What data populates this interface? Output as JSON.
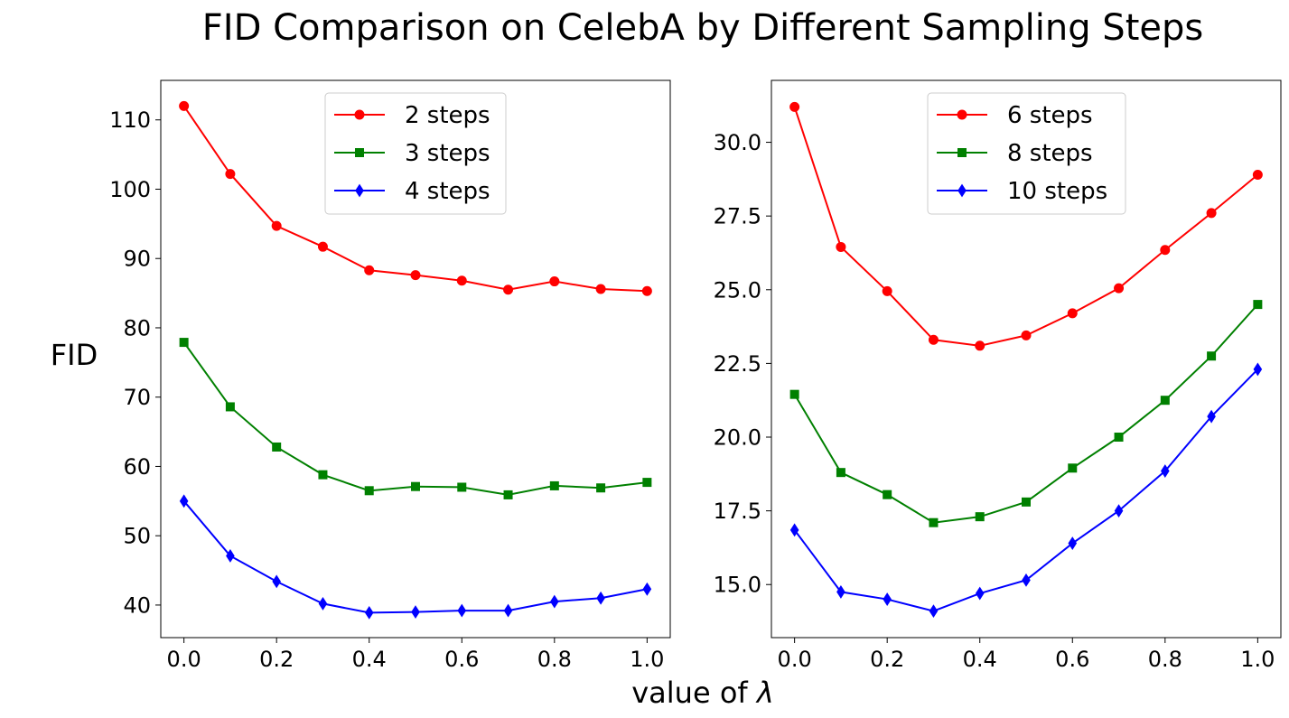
{
  "title": "FID Comparison on CelebA by Different Sampling Steps",
  "ylabel": "FID",
  "xlabel_text": "value of ",
  "xlabel_symbol": "λ",
  "colors": {
    "red": "#ff0000",
    "green": "#008000",
    "blue": "#0000ff"
  },
  "chart_data": [
    {
      "type": "line",
      "x": [
        0.0,
        0.1,
        0.2,
        0.3,
        0.4,
        0.5,
        0.6,
        0.7,
        0.8,
        0.9,
        1.0
      ],
      "xlim": [
        -0.05,
        1.05
      ],
      "ylim": [
        35.3,
        115.7
      ],
      "xticks": [
        "0.0",
        "0.2",
        "0.4",
        "0.6",
        "0.8",
        "1.0"
      ],
      "xtick_values": [
        0.0,
        0.2,
        0.4,
        0.6,
        0.8,
        1.0
      ],
      "yticks": [
        "40",
        "50",
        "60",
        "70",
        "80",
        "90",
        "100",
        "110"
      ],
      "ytick_values": [
        40,
        50,
        60,
        70,
        80,
        90,
        100,
        110
      ],
      "grid": false,
      "legend_position": "top-center",
      "series": [
        {
          "name": "2 steps",
          "color": "#ff0000",
          "marker": "circle",
          "values": [
            112.0,
            102.2,
            94.7,
            91.7,
            88.3,
            87.6,
            86.8,
            85.5,
            86.7,
            85.6,
            85.3
          ]
        },
        {
          "name": "3 steps",
          "color": "#008000",
          "marker": "square",
          "values": [
            77.9,
            68.6,
            62.8,
            58.8,
            56.5,
            57.1,
            57.0,
            55.9,
            57.2,
            56.9,
            57.7
          ]
        },
        {
          "name": "4 steps",
          "color": "#0000ff",
          "marker": "diamond",
          "values": [
            55.0,
            47.1,
            43.4,
            40.2,
            38.9,
            39.0,
            39.2,
            39.2,
            40.5,
            41.0,
            42.3
          ]
        }
      ]
    },
    {
      "type": "line",
      "x": [
        0.0,
        0.1,
        0.2,
        0.3,
        0.4,
        0.5,
        0.6,
        0.7,
        0.8,
        0.9,
        1.0
      ],
      "xlim": [
        -0.05,
        1.05
      ],
      "ylim": [
        13.2,
        32.1
      ],
      "xticks": [
        "0.0",
        "0.2",
        "0.4",
        "0.6",
        "0.8",
        "1.0"
      ],
      "xtick_values": [
        0.0,
        0.2,
        0.4,
        0.6,
        0.8,
        1.0
      ],
      "yticks": [
        "15.0",
        "17.5",
        "20.0",
        "22.5",
        "25.0",
        "27.5",
        "30.0"
      ],
      "ytick_values": [
        15.0,
        17.5,
        20.0,
        22.5,
        25.0,
        27.5,
        30.0
      ],
      "grid": false,
      "legend_position": "top-center",
      "series": [
        {
          "name": "6 steps",
          "color": "#ff0000",
          "marker": "circle",
          "values": [
            31.2,
            26.45,
            24.95,
            23.3,
            23.1,
            23.45,
            24.2,
            25.05,
            26.35,
            27.6,
            28.9
          ]
        },
        {
          "name": "8 steps",
          "color": "#008000",
          "marker": "square",
          "values": [
            21.45,
            18.8,
            18.05,
            17.1,
            17.3,
            17.8,
            18.95,
            20.0,
            21.25,
            22.75,
            24.5
          ]
        },
        {
          "name": "10 steps",
          "color": "#0000ff",
          "marker": "diamond",
          "values": [
            16.85,
            14.75,
            14.5,
            14.1,
            14.7,
            15.15,
            16.4,
            17.5,
            18.85,
            20.7,
            22.3
          ]
        }
      ]
    }
  ]
}
